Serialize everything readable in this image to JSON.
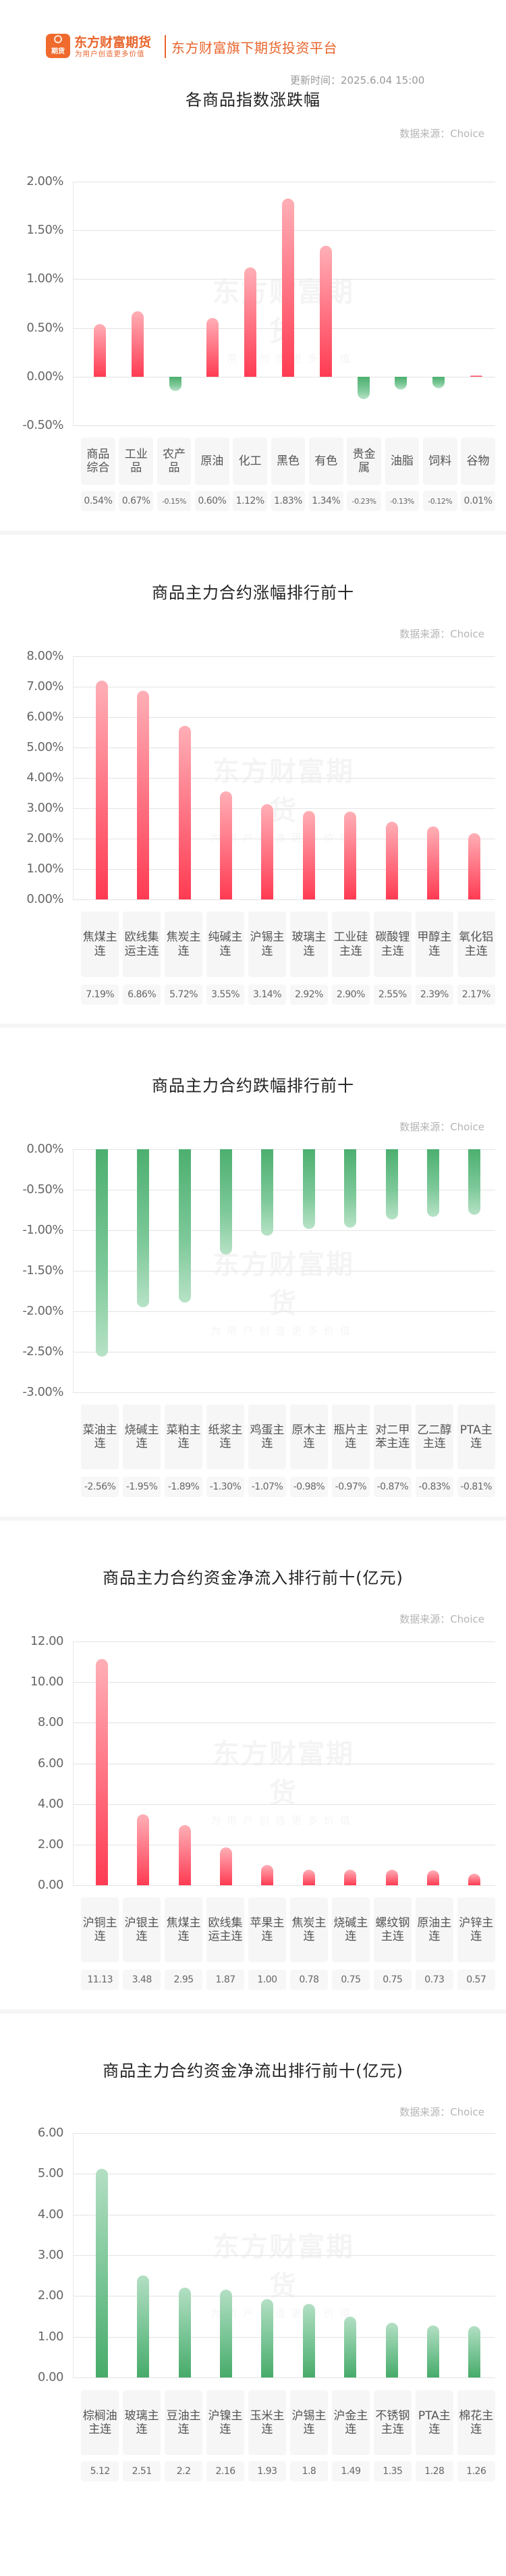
{
  "header": {
    "logo_icon_text": "期货",
    "logo_name": "东方财富期货",
    "logo_slogan": "为用户创造更多价值",
    "platform": "东方财富旗下期货投资平台",
    "update_time": "更新时间：2025.6.04 15:00"
  },
  "watermark": {
    "line1": "东方财富期货",
    "line2": "为用户创造更多价值"
  },
  "source_label": "数据来源：Choice",
  "colors": {
    "up": "#ff3b52",
    "down": "#4caf6f",
    "brand": "#e8652c"
  },
  "chart_data": [
    {
      "id": "index_change",
      "type": "bar",
      "title": "各商品指数涨跌幅",
      "xlabel": "",
      "ylabel": "",
      "unit": "%",
      "categories": [
        "商品综合",
        "工业品",
        "农产品",
        "原油",
        "化工",
        "黑色",
        "有色",
        "贵金属",
        "油脂",
        "饲料",
        "谷物"
      ],
      "values": [
        0.54,
        0.67,
        -0.15,
        0.6,
        1.12,
        1.83,
        1.34,
        -0.23,
        -0.13,
        -0.12,
        0.01
      ],
      "value_labels": [
        "0.54%",
        "0.67%",
        "-0.15%",
        "0.60%",
        "1.12%",
        "1.83%",
        "1.34%",
        "-0.23%",
        "-0.13%",
        "-0.12%",
        "0.01%"
      ],
      "yticks": [
        "2.00%",
        "1.50%",
        "1.00%",
        "0.50%",
        "0.00%",
        "-0.50%"
      ],
      "ylim": [
        -0.5,
        2.0
      ],
      "grid": true,
      "legend": "none"
    },
    {
      "id": "top_gainers",
      "type": "bar",
      "title": "商品主力合约涨幅排行前十",
      "xlabel": "",
      "ylabel": "",
      "unit": "%",
      "categories": [
        "焦煤主连",
        "欧线集运主连",
        "焦炭主连",
        "纯碱主连",
        "沪锡主连",
        "玻璃主连",
        "工业硅主连",
        "碳酸锂主连",
        "甲醇主连",
        "氧化铝主连"
      ],
      "values": [
        7.19,
        6.86,
        5.72,
        3.55,
        3.14,
        2.92,
        2.9,
        2.55,
        2.39,
        2.17
      ],
      "value_labels": [
        "7.19%",
        "6.86%",
        "5.72%",
        "3.55%",
        "3.14%",
        "2.92%",
        "2.90%",
        "2.55%",
        "2.39%",
        "2.17%"
      ],
      "yticks": [
        "8.00%",
        "7.00%",
        "6.00%",
        "5.00%",
        "4.00%",
        "3.00%",
        "2.00%",
        "1.00%",
        "0.00%"
      ],
      "ylim": [
        0,
        8
      ],
      "grid": true,
      "legend": "none"
    },
    {
      "id": "top_losers",
      "type": "bar",
      "title": "商品主力合约跌幅排行前十",
      "xlabel": "",
      "ylabel": "",
      "unit": "%",
      "categories": [
        "菜油主连",
        "烧碱主连",
        "菜粕主连",
        "纸浆主连",
        "鸡蛋主连",
        "原木主连",
        "瓶片主连",
        "对二甲苯主连",
        "乙二醇主连",
        "PTA主连"
      ],
      "values": [
        -2.56,
        -1.95,
        -1.89,
        -1.3,
        -1.07,
        -0.98,
        -0.97,
        -0.87,
        -0.83,
        -0.81
      ],
      "value_labels": [
        "-2.56%",
        "-1.95%",
        "-1.89%",
        "-1.30%",
        "-1.07%",
        "-0.98%",
        "-0.97%",
        "-0.87%",
        "-0.83%",
        "-0.81%"
      ],
      "yticks": [
        "0.00%",
        "-0.50%",
        "-1.00%",
        "-1.50%",
        "-2.00%",
        "-2.50%",
        "-3.00%"
      ],
      "ylim": [
        -3,
        0
      ],
      "grid": true,
      "legend": "none"
    },
    {
      "id": "net_inflow",
      "type": "bar",
      "title": "商品主力合约资金净流入排行前十(亿元)",
      "xlabel": "",
      "ylabel": "亿元",
      "unit": "亿元",
      "categories": [
        "沪铜主连",
        "沪银主连",
        "焦煤主连",
        "欧线集运主连",
        "苹果主连",
        "焦炭主连",
        "烧碱主连",
        "螺纹钢主连",
        "原油主连",
        "沪锌主连"
      ],
      "values": [
        11.13,
        3.48,
        2.95,
        1.87,
        1.0,
        0.78,
        0.75,
        0.75,
        0.73,
        0.57
      ],
      "value_labels": [
        "11.13",
        "3.48",
        "2.95",
        "1.87",
        "1.00",
        "0.78",
        "0.75",
        "0.75",
        "0.73",
        "0.57"
      ],
      "yticks": [
        "12.00",
        "10.00",
        "8.00",
        "6.00",
        "4.00",
        "2.00",
        "0.00"
      ],
      "ylim": [
        0,
        12
      ],
      "grid": true,
      "legend": "none"
    },
    {
      "id": "net_outflow",
      "type": "bar",
      "title": "商品主力合约资金净流出排行前十(亿元)",
      "xlabel": "",
      "ylabel": "亿元",
      "unit": "亿元",
      "categories": [
        "棕榈油主连",
        "玻璃主连",
        "豆油主连",
        "沪镍主连",
        "玉米主连",
        "沪锡主连",
        "沪金主连",
        "不锈钢主连",
        "PTA主连",
        "棉花主连"
      ],
      "values": [
        5.12,
        2.51,
        2.2,
        2.16,
        1.93,
        1.8,
        1.49,
        1.35,
        1.28,
        1.26
      ],
      "value_labels": [
        "5.12",
        "2.51",
        "2.2",
        "2.16",
        "1.93",
        "1.8",
        "1.49",
        "1.35",
        "1.28",
        "1.26"
      ],
      "yticks": [
        "6.00",
        "5.00",
        "4.00",
        "3.00",
        "2.00",
        "1.00",
        "0.00"
      ],
      "ylim": [
        0,
        6
      ],
      "grid": true,
      "legend": "none"
    }
  ]
}
